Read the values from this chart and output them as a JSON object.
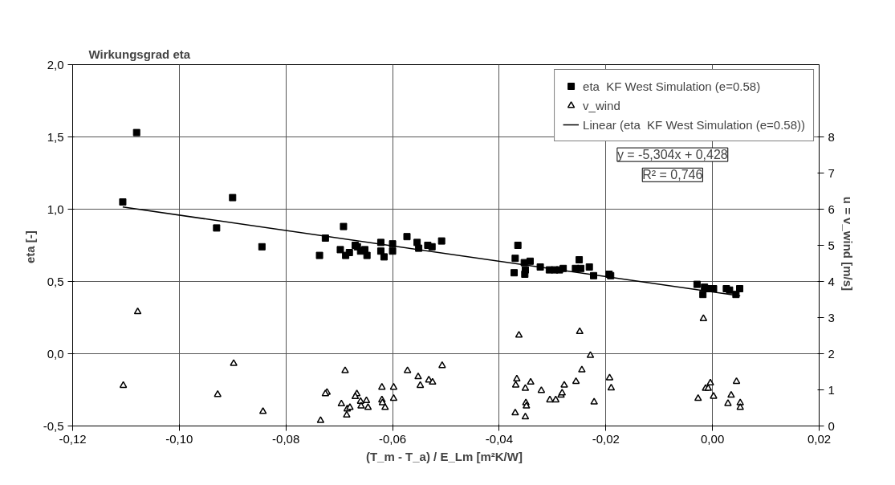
{
  "chart_data": {
    "type": "scatter",
    "title": "Wirkungsgrad  eta",
    "xlabel": "(T_m - T_a) / E_Lm  [m²K/W]",
    "ylabel": "eta  [-]",
    "y2label": "u = v_wind  [m/s]",
    "xlim": [
      -0.12,
      0.02
    ],
    "xticks": [
      {
        "value": -0.12,
        "label": "-0,12"
      },
      {
        "value": -0.1,
        "label": "-0,10"
      },
      {
        "value": -0.08,
        "label": "-0,08"
      },
      {
        "value": -0.06,
        "label": "-0,06"
      },
      {
        "value": -0.04,
        "label": "-0,04"
      },
      {
        "value": -0.02,
        "label": "-0,02"
      },
      {
        "value": 0,
        "label": "0,00"
      },
      {
        "value": 0.02,
        "label": "0,02"
      }
    ],
    "ylim": [
      -0.5,
      2.0
    ],
    "yticks": [
      {
        "value": -0.5,
        "label": "-0,5"
      },
      {
        "value": 0,
        "label": "0,0"
      },
      {
        "value": 0.5,
        "label": "0,5"
      },
      {
        "value": 1.0,
        "label": "1,0"
      },
      {
        "value": 1.5,
        "label": "1,5"
      },
      {
        "value": 2.0,
        "label": "2,0"
      }
    ],
    "y2lim": [
      0,
      10
    ],
    "y2ticks": [
      0,
      1,
      2,
      3,
      4,
      5,
      6,
      7,
      8
    ],
    "grid": true,
    "legend": "top right",
    "annotations": [
      "y = -5,304x + 0,428",
      "R² = 0,746"
    ],
    "series": [
      {
        "name": "eta  KF West Simulation (e=0.58)",
        "marker": "square",
        "color": "#000000",
        "x": [
          -0.108,
          -0.1106,
          -0.09,
          -0.093,
          -0.0845,
          -0.0737,
          -0.0726,
          -0.0692,
          -0.0698,
          -0.0688,
          -0.0681,
          -0.067,
          -0.0666,
          -0.066,
          -0.0652,
          -0.0648,
          -0.0622,
          -0.0622,
          -0.0616,
          -0.06,
          -0.06,
          -0.0573,
          -0.0554,
          -0.0551,
          -0.0534,
          -0.0526,
          -0.0508,
          -0.0365,
          -0.037,
          -0.0372,
          -0.0353,
          -0.0342,
          -0.0351,
          -0.0352,
          -0.0323,
          -0.0306,
          -0.0296,
          -0.0287,
          -0.028,
          -0.0257,
          -0.025,
          -0.0247,
          -0.0231,
          -0.0223,
          -0.0194,
          -0.0191,
          -0.0029,
          -0.0018,
          -0.0015,
          -0.0007,
          0.0002,
          0.0026,
          0.0032,
          0.0044,
          0.0051
        ],
        "values": [
          1.53,
          1.05,
          1.08,
          0.87,
          0.74,
          0.68,
          0.8,
          0.88,
          0.72,
          0.68,
          0.7,
          0.75,
          0.74,
          0.71,
          0.72,
          0.68,
          0.77,
          0.71,
          0.67,
          0.76,
          0.71,
          0.81,
          0.77,
          0.73,
          0.75,
          0.74,
          0.78,
          0.75,
          0.66,
          0.56,
          0.63,
          0.64,
          0.58,
          0.55,
          0.6,
          0.58,
          0.58,
          0.58,
          0.59,
          0.59,
          0.65,
          0.59,
          0.6,
          0.54,
          0.55,
          0.54,
          0.48,
          0.41,
          0.46,
          0.45,
          0.45,
          0.45,
          0.44,
          0.41,
          0.45
        ]
      },
      {
        "name": "v_wind",
        "marker": "triangle",
        "color": "#000000",
        "axis": "y2",
        "x": [
          -0.1078,
          -0.1105,
          -0.0898,
          -0.0928,
          -0.0843,
          -0.0735,
          -0.0689,
          -0.0723,
          -0.0726,
          -0.0696,
          -0.0685,
          -0.068,
          -0.0686,
          -0.0667,
          -0.067,
          -0.066,
          -0.0659,
          -0.0649,
          -0.0646,
          -0.062,
          -0.062,
          -0.0619,
          -0.0614,
          -0.0598,
          -0.0598,
          -0.0572,
          -0.0552,
          -0.0548,
          -0.0532,
          -0.0525,
          -0.0507,
          -0.0363,
          -0.0367,
          -0.0369,
          -0.0351,
          -0.0341,
          -0.035,
          -0.0349,
          -0.037,
          -0.0351,
          -0.0321,
          -0.0305,
          -0.0294,
          -0.0284,
          -0.0282,
          -0.0278,
          -0.0256,
          -0.0249,
          -0.0245,
          -0.0229,
          -0.0222,
          -0.0193,
          -0.019,
          -0.0017,
          -0.0027,
          -0.0013,
          -0.0008,
          -0.0004,
          0.0002,
          0.0029,
          0.0035,
          0.0045,
          0.0052,
          0.0052
        ],
        "values": [
          3.16,
          1.12,
          1.73,
          0.87,
          0.4,
          0.15,
          1.53,
          0.93,
          0.89,
          0.61,
          0.47,
          0.51,
          0.3,
          0.89,
          0.81,
          0.68,
          0.55,
          0.7,
          0.51,
          1.07,
          0.72,
          0.64,
          0.51,
          1.07,
          0.76,
          1.53,
          1.36,
          1.12,
          1.27,
          1.21,
          1.67,
          2.51,
          1.3,
          1.13,
          1.04,
          1.21,
          0.64,
          0.55,
          0.36,
          0.25,
          0.98,
          0.72,
          0.72,
          0.85,
          0.91,
          1.13,
          1.23,
          2.61,
          1.55,
          1.95,
          0.66,
          1.33,
          1.05,
          2.97,
          0.76,
          1.04,
          1.04,
          1.19,
          0.82,
          0.62,
          0.85,
          1.23,
          0.64,
          0.51
        ]
      },
      {
        "name": "Linear (eta  KF West Simulation (e=0.58))",
        "type": "line",
        "line_style": "solid",
        "color": "#000000",
        "x": [
          -0.1106,
          0.0052
        ],
        "values": [
          1.015,
          0.4
        ]
      }
    ]
  }
}
